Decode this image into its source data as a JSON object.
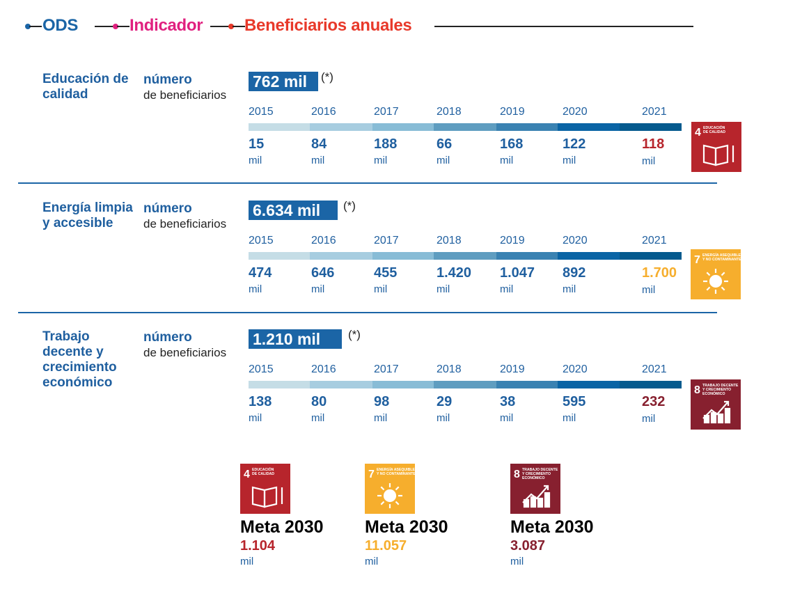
{
  "legend": {
    "ods": {
      "label": "ODS",
      "color": "#1b65a6"
    },
    "indicador": {
      "label": "Indicador",
      "color": "#e0207f"
    },
    "beneficiarios": {
      "label": "Beneficiarios anuales",
      "color": "#e8392a"
    }
  },
  "chart_data": {
    "type": "table",
    "title": "Beneficiarios anuales por ODS",
    "categories": [
      "2015",
      "2016",
      "2017",
      "2018",
      "2019",
      "2020",
      "2021"
    ],
    "unit": "mil",
    "series": [
      {
        "name": "Educación de calidad",
        "indicator": "número de beneficiarios",
        "total": "762 mil",
        "total_note": "(*)",
        "values": [
          15,
          84,
          188,
          66,
          168,
          122,
          118
        ],
        "labels": [
          "15",
          "84",
          "188",
          "66",
          "168",
          "122",
          "118"
        ],
        "sdg_number": "4",
        "sdg_name": "EDUCACIÓN DE CALIDAD",
        "color": "#b7252c",
        "meta_2030": "1.104"
      },
      {
        "name": "Energía limpia y accesible",
        "indicator": "número de beneficiarios",
        "total": "6.634 mil",
        "total_note": "(*)",
        "values": [
          474,
          646,
          455,
          1420,
          1047,
          892,
          1700
        ],
        "labels": [
          "474",
          "646",
          "455",
          "1.420",
          "1.047",
          "892",
          "1.700"
        ],
        "sdg_number": "7",
        "sdg_name": "ENERGÍA ASEQUIBLE Y NO CONTAMINANTE",
        "color": "#f6ae2d",
        "meta_2030": "11.057"
      },
      {
        "name": "Trabajo decente y crecimiento económico",
        "indicator": "número de beneficiarios",
        "total": "1.210 mil",
        "total_note": "(*)",
        "values": [
          138,
          80,
          98,
          29,
          38,
          595,
          232
        ],
        "labels": [
          "138",
          "80",
          "98",
          "29",
          "38",
          "595",
          "232"
        ],
        "sdg_number": "8",
        "sdg_name": "TRABAJO DECENTE Y CRECIMIENTO ECONÓMICO",
        "color": "#87202f",
        "meta_2030": "3.087"
      }
    ]
  },
  "sections": [
    {
      "ods_title": "Educación de calidad",
      "ind_bold": "número",
      "ind_rest": "de beneficiarios"
    },
    {
      "ods_title": "Energía limpia y accesible",
      "ind_bold": "número",
      "ind_rest": "de beneficiarios"
    },
    {
      "ods_title": "Trabajo decente y crecimiento económico",
      "ind_bold": "número",
      "ind_rest": "de beneficiarios"
    }
  ],
  "text": {
    "mil": "mil",
    "meta_title": "Meta 2030",
    "value_color": "#1f5f9f"
  },
  "bar_colors": [
    "#c5dde6",
    "#a7cde0",
    "#88bcd6",
    "#5f9dc0",
    "#3a82b2",
    "#0a64a5",
    "#055a8e"
  ],
  "meta": [
    {
      "title": "Meta 2030",
      "value": "1.104",
      "unit": "mil"
    },
    {
      "title": "Meta 2030",
      "value": "11.057",
      "unit": "mil"
    },
    {
      "title": "Meta 2030",
      "value": "3.087",
      "unit": "mil"
    }
  ]
}
